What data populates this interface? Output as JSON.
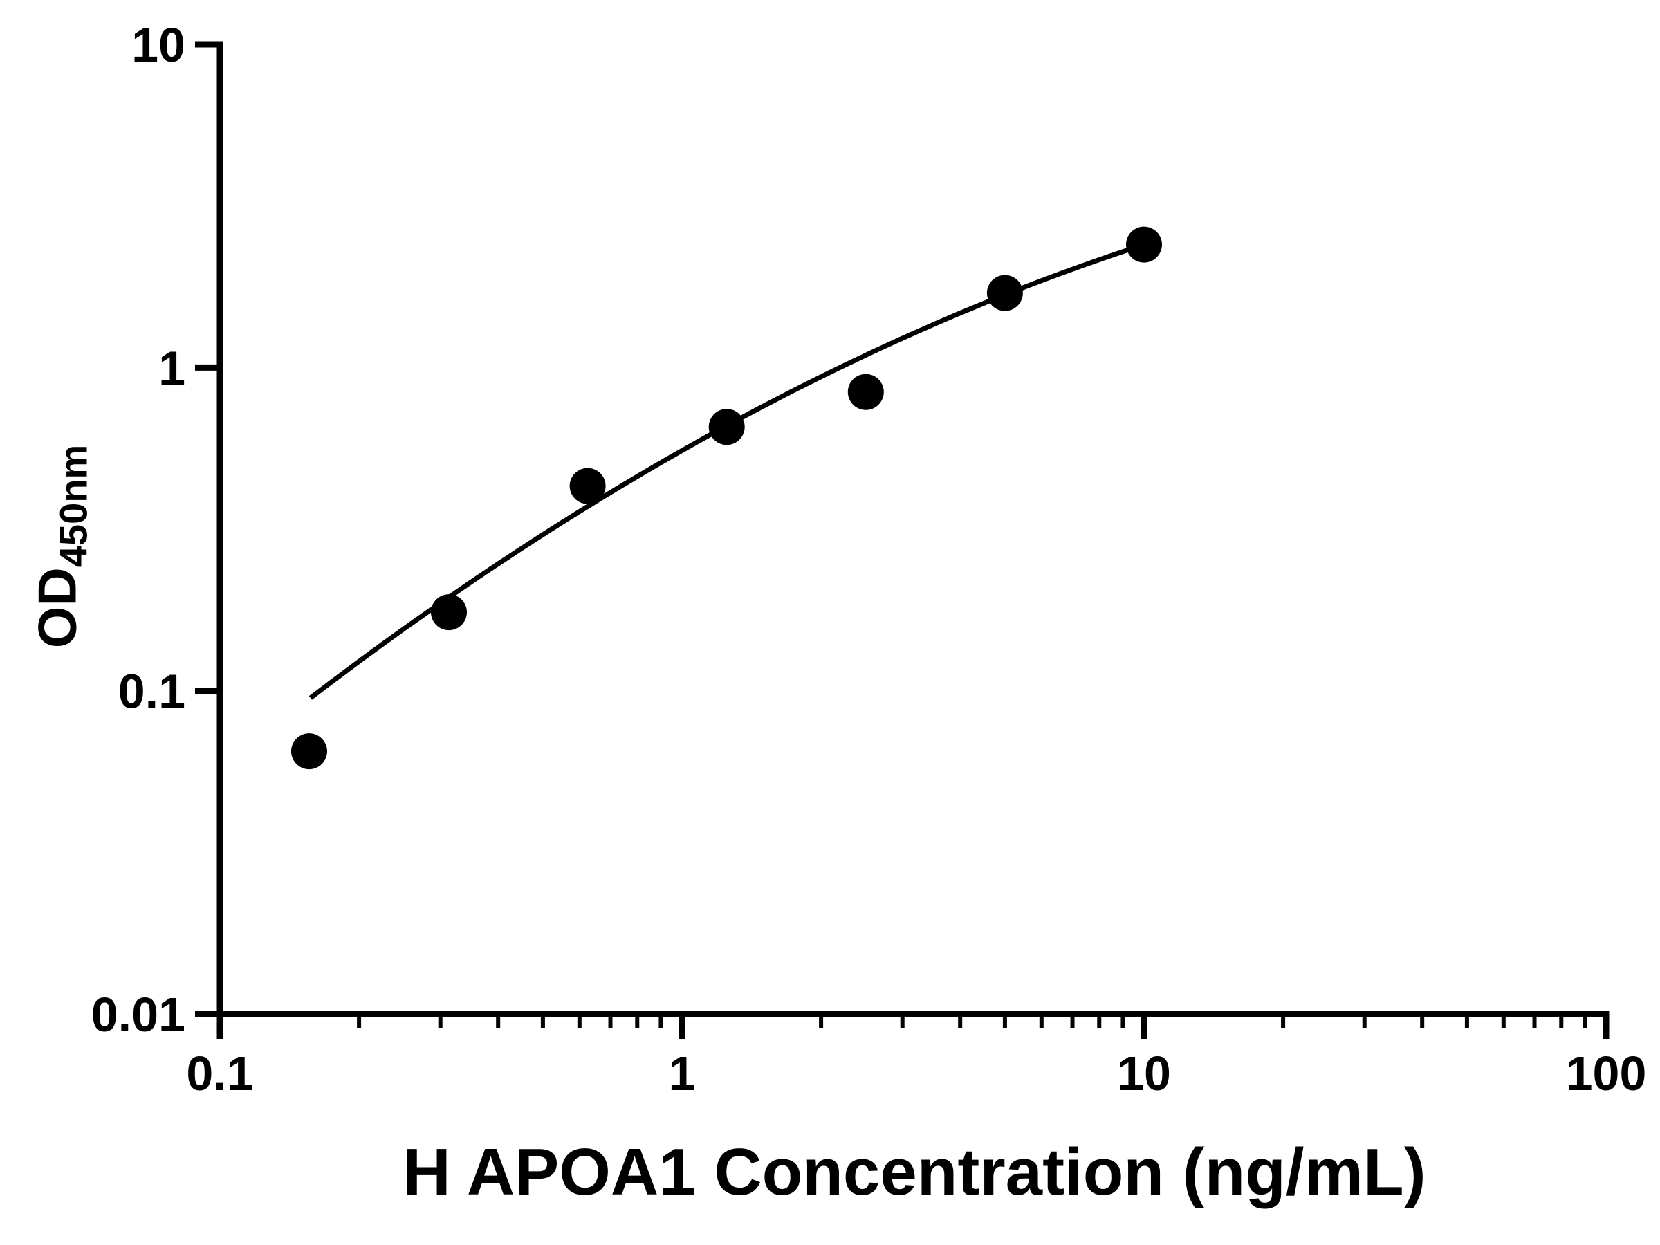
{
  "chart_data": {
    "type": "scatter",
    "title": "",
    "xlabel": "H APOA1 Concentration (ng/mL)",
    "ylabel_main": "OD",
    "ylabel_sub": "450nm",
    "x_scale": "log",
    "y_scale": "log",
    "xlim": [
      0.1,
      100
    ],
    "ylim": [
      0.01,
      10
    ],
    "grid": false,
    "legend": "none",
    "x_ticks": [
      {
        "value": 0.1,
        "label": "0.1"
      },
      {
        "value": 1,
        "label": "1"
      },
      {
        "value": 10,
        "label": "10"
      },
      {
        "value": 100,
        "label": "100"
      }
    ],
    "y_ticks": [
      {
        "value": 0.01,
        "label": "0.01"
      },
      {
        "value": 0.1,
        "label": "0.1"
      },
      {
        "value": 1,
        "label": "1"
      },
      {
        "value": 10,
        "label": "10"
      }
    ],
    "x_minor_ticks": true,
    "y_minor_ticks": false,
    "points": [
      {
        "x": 0.156,
        "y": 0.065
      },
      {
        "x": 0.313,
        "y": 0.175
      },
      {
        "x": 0.625,
        "y": 0.43
      },
      {
        "x": 1.25,
        "y": 0.655
      },
      {
        "x": 2.5,
        "y": 0.84
      },
      {
        "x": 5,
        "y": 1.7
      },
      {
        "x": 10,
        "y": 2.4
      }
    ],
    "fit_curve": {
      "type": "log-quadratic",
      "description": "log10(y) = a*u^2 + b*u + c where u = log10(x)",
      "coeffs": {
        "a": -0.1744,
        "b": 0.8114,
        "c": -0.257
      },
      "x_range": [
        0.157,
        10
      ]
    },
    "colors": {
      "axis": "#000000",
      "points": "#000000",
      "curve": "#000000",
      "background": "#ffffff"
    }
  }
}
